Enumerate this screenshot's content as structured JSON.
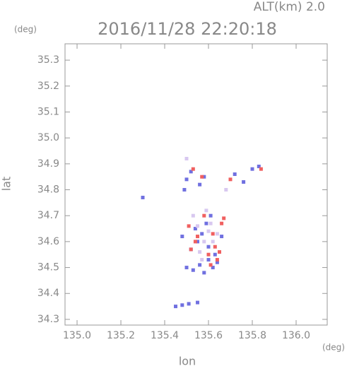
{
  "chart_data": {
    "type": "scatter",
    "title": "2016/11/28 22:20:18",
    "subtitle": "ALT(km)  2.0",
    "y_unit": "(deg)",
    "x_unit": "(deg)",
    "y_label": "lat",
    "x_label": "lon",
    "xlim": [
      134.945,
      136.142
    ],
    "ylim": [
      34.278,
      35.363
    ],
    "xticks": [
      {
        "value": 135.0,
        "label": "135.0"
      },
      {
        "value": 135.2,
        "label": "135.2"
      },
      {
        "value": 135.4,
        "label": "135.4"
      },
      {
        "value": 135.6,
        "label": "135.6"
      },
      {
        "value": 135.8,
        "label": "135.8"
      },
      {
        "value": 136.0,
        "label": "136.0"
      }
    ],
    "yticks": [
      {
        "value": 34.3,
        "label": "34.3"
      },
      {
        "value": 34.4,
        "label": "34.4"
      },
      {
        "value": 34.5,
        "label": "34.5"
      },
      {
        "value": 34.6,
        "label": "34.6"
      },
      {
        "value": 34.7,
        "label": "34.7"
      },
      {
        "value": 34.8,
        "label": "34.8"
      },
      {
        "value": 34.9,
        "label": "34.9"
      },
      {
        "value": 35.0,
        "label": "35.0"
      },
      {
        "value": 35.1,
        "label": "35.1"
      },
      {
        "value": 35.2,
        "label": "35.2"
      },
      {
        "value": 35.3,
        "label": "35.3"
      }
    ],
    "series": [
      {
        "color": "#7070e0",
        "x": [
          135.5,
          135.53,
          135.56,
          135.58,
          135.62,
          135.64,
          135.52,
          135.55,
          135.6,
          135.63,
          135.57,
          135.59,
          135.61,
          135.54,
          135.48,
          135.5,
          135.52,
          135.56,
          135.58,
          135.72,
          135.76,
          135.8,
          135.83,
          135.49,
          135.3,
          135.45,
          135.48,
          135.51,
          135.55,
          135.66,
          135.6
        ],
        "values": [
          34.5,
          34.49,
          34.51,
          34.48,
          34.5,
          34.52,
          34.57,
          34.6,
          34.58,
          34.55,
          34.63,
          34.67,
          34.7,
          34.65,
          34.62,
          34.84,
          34.87,
          34.82,
          34.85,
          34.86,
          34.83,
          34.88,
          34.89,
          34.8,
          34.77,
          34.35,
          34.355,
          34.36,
          34.365,
          34.62,
          34.53
        ]
      },
      {
        "color": "#f06060",
        "x": [
          135.52,
          135.55,
          135.6,
          135.63,
          135.66,
          135.58,
          135.62,
          135.54,
          135.65,
          135.67,
          135.61,
          135.53,
          135.57,
          135.7,
          135.84,
          135.51,
          135.64
        ],
        "values": [
          34.57,
          34.62,
          34.55,
          34.58,
          34.67,
          34.7,
          34.63,
          34.6,
          34.56,
          34.69,
          34.51,
          34.88,
          34.85,
          34.84,
          34.88,
          34.66,
          34.53
        ]
      },
      {
        "color": "#d8c8f0",
        "x": [
          135.55,
          135.58,
          135.6,
          135.57,
          135.62,
          135.53,
          135.59,
          135.56,
          135.61,
          135.64,
          135.68,
          135.5
        ],
        "values": [
          34.66,
          34.6,
          34.64,
          34.53,
          34.6,
          34.7,
          34.72,
          34.56,
          34.67,
          34.63,
          34.8,
          34.92
        ]
      }
    ]
  }
}
